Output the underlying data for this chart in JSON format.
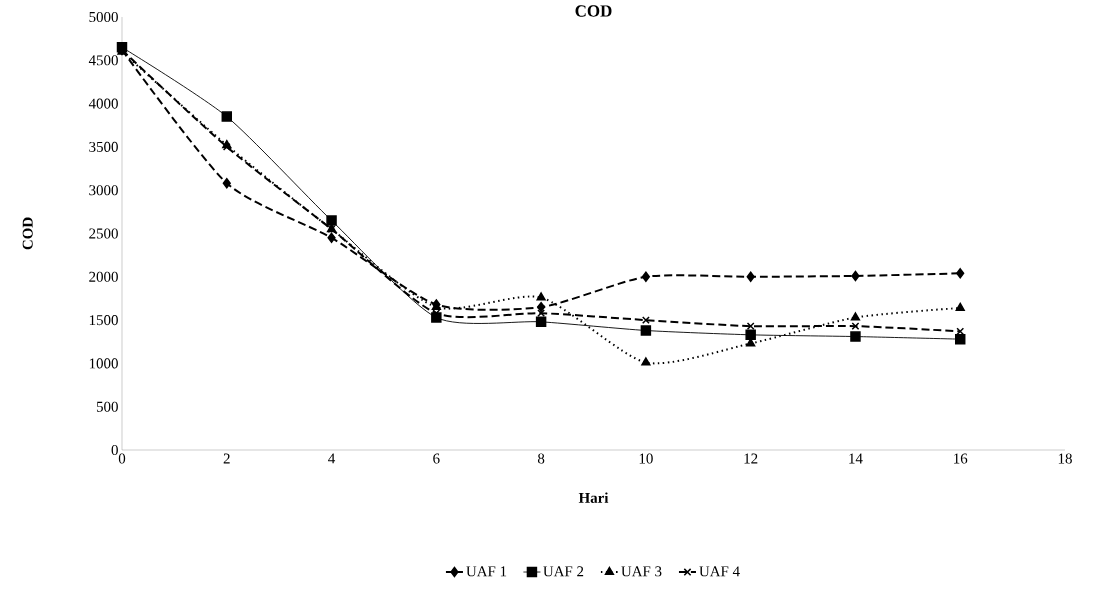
{
  "chart_data": {
    "type": "line",
    "title": "COD",
    "xlabel": "Hari",
    "ylabel": "COD",
    "x": [
      0,
      2,
      4,
      6,
      8,
      10,
      12,
      14,
      16
    ],
    "series": [
      {
        "name": "UAF 1",
        "color": "#000000",
        "marker": "diamond",
        "line_style": "dashed",
        "values": [
          4620,
          3080,
          2450,
          1680,
          1650,
          2000,
          2000,
          2010,
          2040
        ]
      },
      {
        "name": "UAF 2",
        "color": "#000000",
        "marker": "square",
        "line_style": "solid",
        "values": [
          4650,
          3850,
          2650,
          1530,
          1480,
          1380,
          1330,
          1310,
          1280
        ]
      },
      {
        "name": "UAF 3",
        "color": "#000000",
        "marker": "triangle",
        "line_style": "dotted",
        "values": [
          4600,
          3520,
          2550,
          1650,
          1760,
          1010,
          1230,
          1530,
          1640
        ]
      },
      {
        "name": "UAF 4",
        "color": "#000000",
        "marker": "cross",
        "line_style": "dashed",
        "values": [
          4620,
          3500,
          2550,
          1580,
          1580,
          1500,
          1430,
          1430,
          1370
        ]
      }
    ],
    "xlim": [
      0,
      18
    ],
    "xticks": [
      0,
      2,
      4,
      6,
      8,
      10,
      12,
      14,
      16,
      18
    ],
    "ylim": [
      0,
      5000
    ],
    "yticks": [
      0,
      500,
      1000,
      1500,
      2000,
      2500,
      3000,
      3500,
      4000,
      4500,
      5000
    ],
    "grid": false,
    "legend": "bottom"
  }
}
